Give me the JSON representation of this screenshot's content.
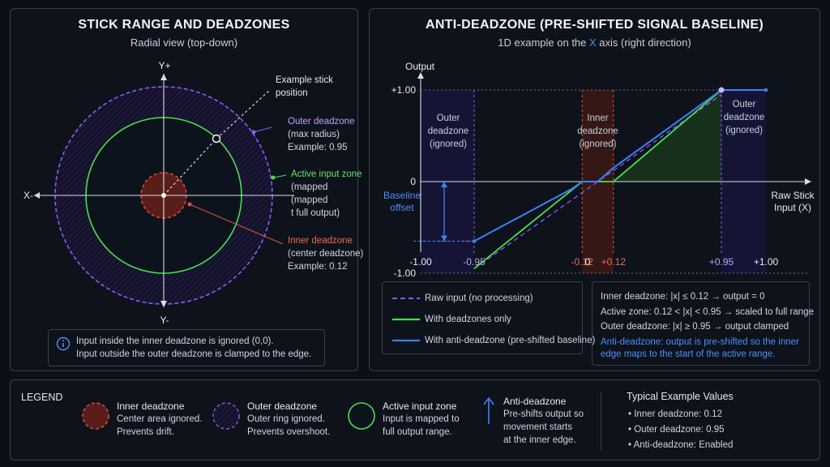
{
  "colors": {
    "purple": "#8b5cf6",
    "green": "#4ade50",
    "red": "#e0533e",
    "blue": "#3b82f6",
    "blue_text": "#4f8ff7"
  },
  "left": {
    "title": "STICK RANGE AND DEADZONES",
    "subtitle": "Radial view (top-down)",
    "axis": {
      "y_top": "Y+",
      "y_bottom": "Y-",
      "x_left": "X-"
    },
    "example_label": [
      "Example stick",
      "position"
    ],
    "outer_label": [
      "Outer deadzone",
      "(max radius)",
      "Example: 0.95"
    ],
    "active_label": [
      "Active input zone",
      "(mapped",
      "(mapped",
      "t full output)"
    ],
    "inner_label": [
      "Inner deadzone",
      "(center deadzone)",
      "Example: 0.12"
    ],
    "info": [
      "Input inside the inner deadzone is ignored (0,0).",
      "Input outside the outer deadzone is clamped to the edge."
    ],
    "info_icon": "info-icon"
  },
  "right": {
    "title": "ANTI-DEADZONE (PRE-SHIFTED SIGNAL BASELINE)",
    "subtitle_pre": "1D example on the ",
    "subtitle_x": "X",
    "subtitle_post": " axis (right direction)",
    "chart": {
      "y_axis_label": "Output",
      "x_axis_label": [
        "Raw Stick",
        "Input (X)"
      ],
      "y_ticks": [
        "+1.00",
        "0",
        "-1.00"
      ],
      "x_ticks": [
        "-1.00",
        "-0.95",
        "-0.12",
        "0",
        "+0.12",
        "+0.95",
        "+1.00"
      ],
      "region_outer_left": [
        "Outer",
        "deadzone",
        "(ignored)"
      ],
      "region_inner": [
        "Inner",
        "deadzone",
        "(ignored)"
      ],
      "region_outer_right": [
        "Outer",
        "deadzone",
        "(ignored)"
      ],
      "baseline_label": [
        "Baseline",
        "offset"
      ]
    },
    "legend": [
      "Raw input (no processing)",
      "With deadzones only",
      "With anti-deadzone (pre-shifted baseline)"
    ],
    "notes": [
      "Inner deadzone: |x| ≤ 0.12 → output = 0",
      "Active zone: 0.12 < |x| < 0.95 → scaled to full range",
      "Outer deadzone: |x| ≥ 0.95 → output clamped"
    ],
    "anti_note": [
      "Anti-deadzone: output is pre-shifted so the inner",
      "edge maps to the start of the active range."
    ]
  },
  "chart_data": {
    "type": "line",
    "xlabel": "Raw Stick Input (X)",
    "ylabel": "Output",
    "xlim": [
      -1,
      1
    ],
    "ylim": [
      -1,
      1
    ],
    "x_ticks": [
      -1.0,
      -0.95,
      -0.12,
      0,
      0.12,
      0.95,
      1.0
    ],
    "y_ticks": [
      -1,
      0,
      1
    ],
    "series": [
      {
        "name": "Raw input (no processing)",
        "x": [
          -0.95,
          0.95
        ],
        "y": [
          -0.95,
          0.95
        ]
      },
      {
        "name": "With deadzones only",
        "x": [
          -0.95,
          -0.12,
          0.12,
          0.95,
          1.0
        ],
        "y": [
          -0.95,
          0,
          0,
          1,
          1
        ]
      },
      {
        "name": "With anti-deadzone (pre-shifted baseline)",
        "x": [
          -0.95,
          -0.2,
          -0.12,
          0.0,
          0.12,
          0.95,
          1.0
        ],
        "y": [
          -0.65,
          -0.08,
          0,
          0,
          0.15,
          1,
          1
        ]
      }
    ]
  },
  "legend_bottom": {
    "title": "LEGEND",
    "items": [
      {
        "title": "Inner deadzone",
        "l1": "Center area ignored.",
        "l2": "Prevents drift."
      },
      {
        "title": "Outer deadzone",
        "l1": "Outer ring ignored.",
        "l2": "Prevents overshoot."
      },
      {
        "title": "Active input zone",
        "l1": "Input is mapped to",
        "l2": "full output range."
      },
      {
        "title": "Anti-deadzone",
        "l1": "Pre-shifts output so",
        "l2": "movement starts",
        "l3": "at the inner edge."
      }
    ],
    "typical_title": "Typical Example Values",
    "typical": [
      "Inner deadzone: 0.12",
      "Outer deadzone: 0.95",
      "Anti-deadzone: Enabled"
    ]
  }
}
